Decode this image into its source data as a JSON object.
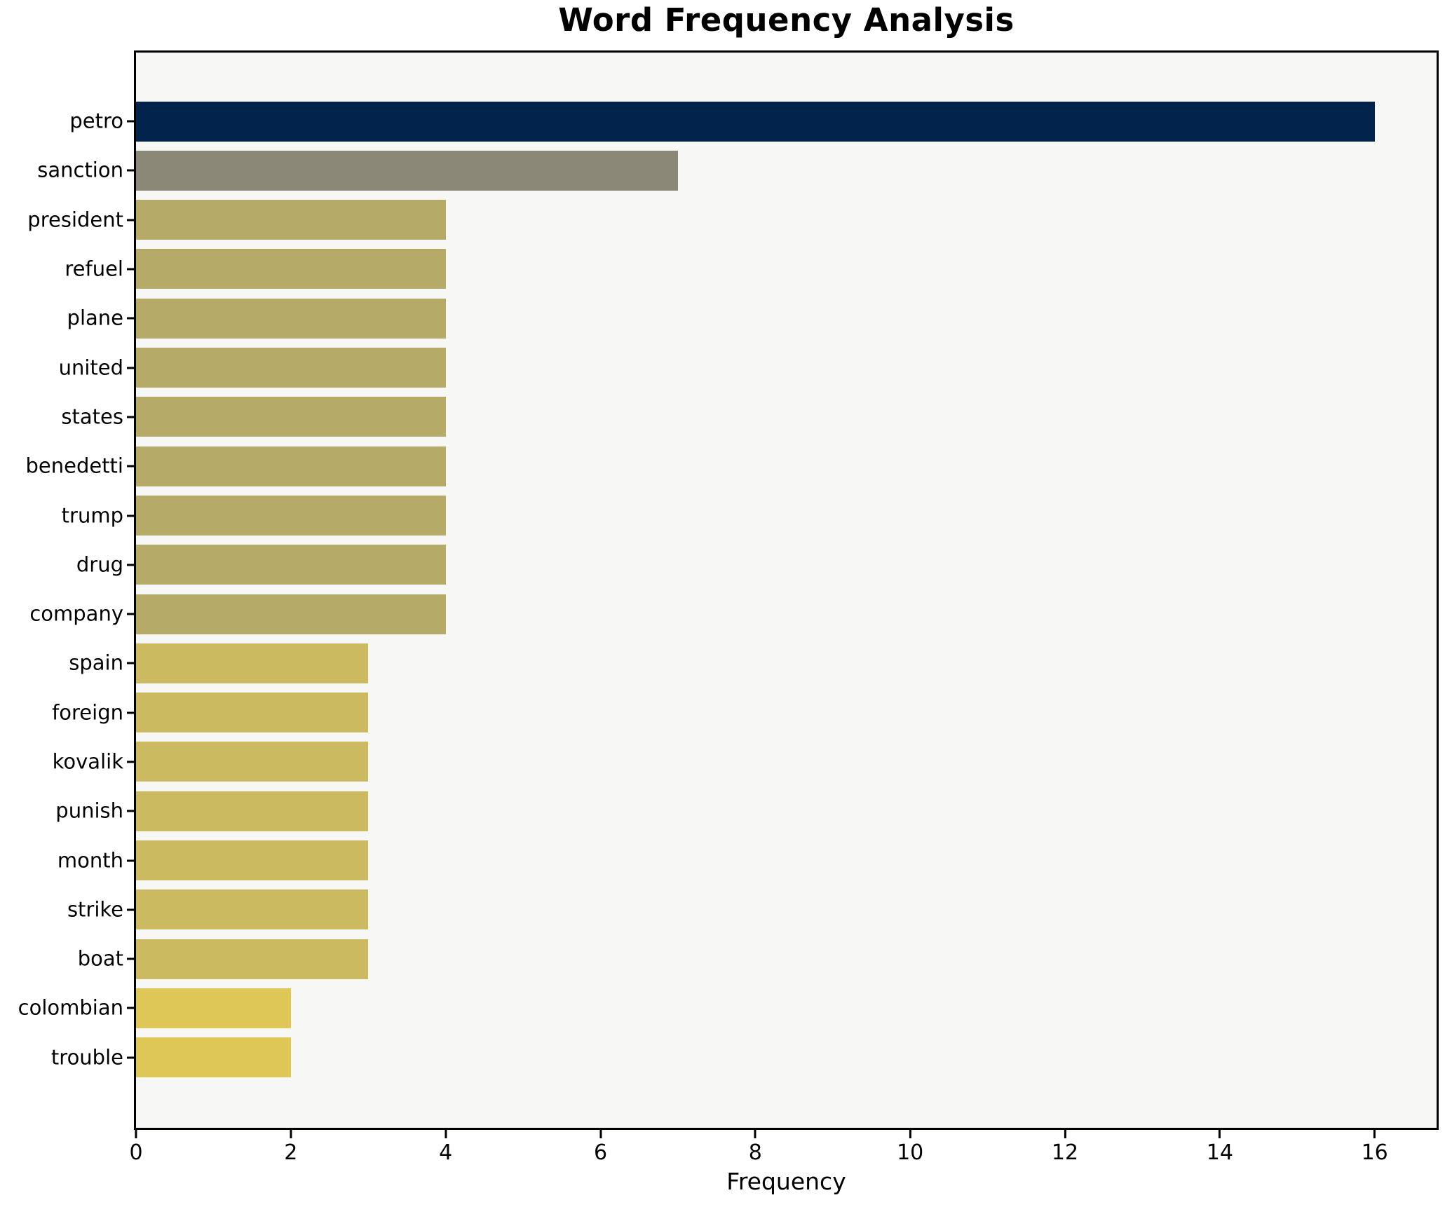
{
  "chart_data": {
    "type": "bar",
    "orientation": "horizontal",
    "title": "Word Frequency Analysis",
    "xlabel": "Frequency",
    "ylabel": "",
    "categories": [
      "petro",
      "sanction",
      "president",
      "refuel",
      "plane",
      "united",
      "states",
      "benedetti",
      "trump",
      "drug",
      "company",
      "spain",
      "foreign",
      "kovalik",
      "punish",
      "month",
      "strike",
      "boat",
      "colombian",
      "trouble"
    ],
    "values": [
      16,
      7,
      4,
      4,
      4,
      4,
      4,
      4,
      4,
      4,
      4,
      3,
      3,
      3,
      3,
      3,
      3,
      3,
      2,
      2
    ],
    "bar_colors": [
      "#02234c",
      "#8b8878",
      "#b5aa68",
      "#b5aa68",
      "#b5aa68",
      "#b5aa68",
      "#b5aa68",
      "#b5aa68",
      "#b5aa68",
      "#b5aa68",
      "#b5aa68",
      "#ccba60",
      "#ccba60",
      "#ccba60",
      "#ccba60",
      "#ccba60",
      "#ccba60",
      "#ccba60",
      "#dfc757",
      "#dfc757"
    ],
    "xticks": [
      0,
      2,
      4,
      6,
      8,
      10,
      12,
      14,
      16
    ],
    "xlim": [
      0,
      16.8
    ],
    "grid": false,
    "legend": false,
    "plot_background": "#f7f7f6",
    "figure_background": "#ffffff",
    "spine_color": "#000000",
    "text_color": "#000000"
  }
}
